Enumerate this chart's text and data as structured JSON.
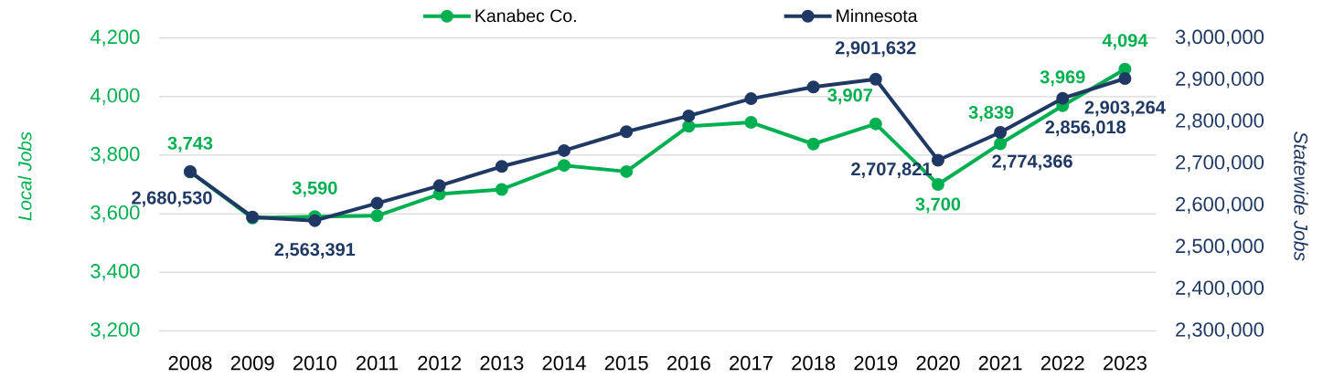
{
  "chart_data": {
    "type": "line",
    "categories": [
      "2008",
      "2009",
      "2010",
      "2011",
      "2012",
      "2013",
      "2014",
      "2015",
      "2016",
      "2017",
      "2018",
      "2019",
      "2020",
      "2021",
      "2022",
      "2023"
    ],
    "ylabel": "Local Jobs",
    "y2label": "Statewide Jobs",
    "ylim": [
      3200,
      4200
    ],
    "yticks": [
      {
        "value": 3200,
        "label": "3,200"
      },
      {
        "value": 3400,
        "label": "3,400"
      },
      {
        "value": 3600,
        "label": "3,600"
      },
      {
        "value": 3800,
        "label": "3,800"
      },
      {
        "value": 4000,
        "label": "4,000"
      },
      {
        "value": 4200,
        "label": "4,200"
      }
    ],
    "y2lim": [
      2300000,
      3000000
    ],
    "y2ticks": [
      {
        "value": 2300000,
        "label": "2,300,000"
      },
      {
        "value": 2400000,
        "label": "2,400,000"
      },
      {
        "value": 2500000,
        "label": "2,500,000"
      },
      {
        "value": 2600000,
        "label": "2,600,000"
      },
      {
        "value": 2700000,
        "label": "2,700,000"
      },
      {
        "value": 2800000,
        "label": "2,800,000"
      },
      {
        "value": 2900000,
        "label": "2,900,000"
      },
      {
        "value": 3000000,
        "label": "3,000,000"
      }
    ],
    "grid": "y",
    "legend": "top",
    "marker": "circle",
    "line_style": "solid",
    "series": [
      {
        "name": "Kanabec Co.",
        "color": "#00b050",
        "values": [
          3743,
          3585,
          3590,
          3593,
          3667,
          3683,
          3765,
          3744,
          3899,
          3912,
          3838,
          3907,
          3700,
          3839,
          3969,
          4094
        ],
        "value_labels": [
          "3,743",
          null,
          "3,590",
          null,
          null,
          null,
          null,
          null,
          null,
          null,
          null,
          "3,907",
          "3,700",
          "3,839",
          "3,969",
          "4,094"
        ]
      },
      {
        "name": "Minnesota",
        "color": "#1f3864",
        "axis": "y2",
        "values": [
          2680530,
          2572000,
          2563391,
          2605000,
          2647000,
          2693000,
          2731000,
          2776000,
          2814000,
          2855000,
          2883000,
          2901632,
          2707821,
          2774366,
          2856018,
          2903264
        ],
        "value_labels": [
          "2,680,530",
          null,
          "2,563,391",
          null,
          null,
          null,
          null,
          null,
          null,
          null,
          null,
          "2,901,632",
          "2,707,821",
          "2,774,366",
          "2,856,018",
          "2,903,264"
        ]
      }
    ]
  }
}
